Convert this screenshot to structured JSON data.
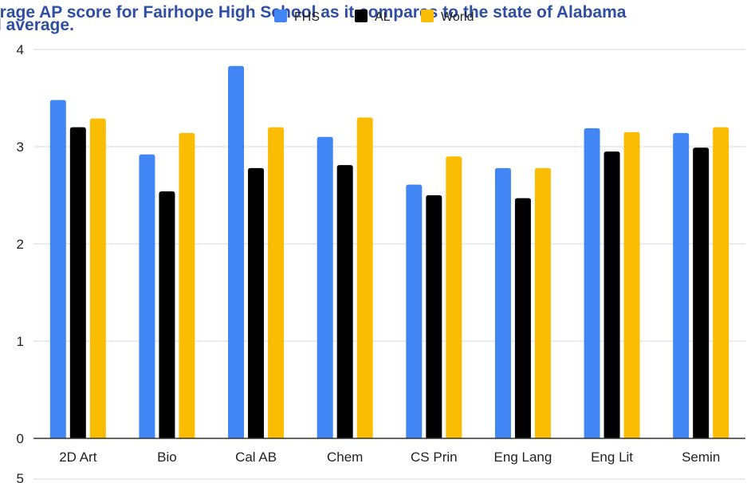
{
  "caption": {
    "line1": "erage AP score for Fairhope High School as it compares to the state of Alabama",
    "line2": "l average."
  },
  "chart_data": {
    "type": "bar",
    "categories": [
      "2D Art",
      "Bio",
      "Cal AB",
      "Chem",
      "CS Prin",
      "Eng Lang",
      "Eng Lit",
      "Semin"
    ],
    "series": [
      {
        "name": "FHS",
        "color": "#4285f4",
        "values": [
          3.48,
          2.92,
          3.83,
          3.1,
          2.61,
          2.78,
          3.19,
          3.14
        ]
      },
      {
        "name": "AL",
        "color": "#000000",
        "values": [
          3.2,
          2.54,
          2.78,
          2.81,
          2.5,
          2.47,
          2.95,
          2.99
        ]
      },
      {
        "name": "World",
        "color": "#fbbc04",
        "values": [
          3.29,
          3.14,
          3.2,
          3.3,
          2.9,
          2.78,
          3.15,
          3.2
        ]
      }
    ],
    "y_ticks": [
      "0",
      "1",
      "2",
      "3",
      "4"
    ],
    "ylim": [
      0,
      4
    ],
    "grid": true,
    "legend_position": "top-center",
    "next_chart_y_tick": "5"
  }
}
